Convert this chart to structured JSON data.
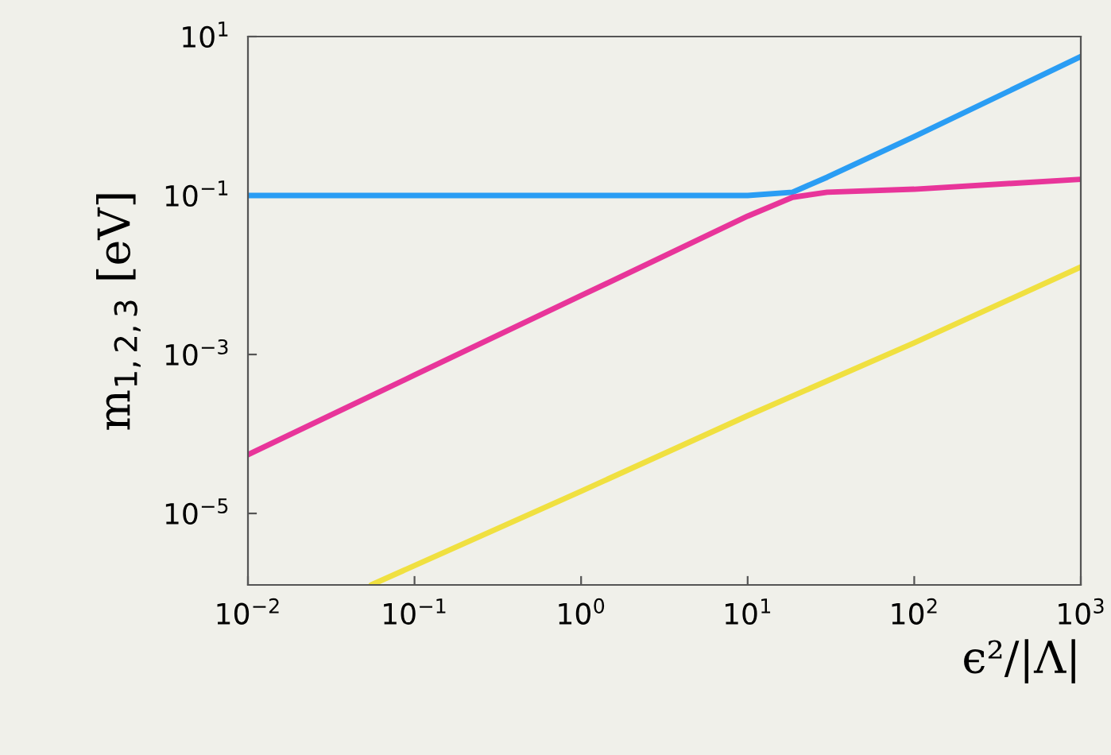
{
  "chart_data": {
    "type": "line",
    "xlabel": "ϵ²/|Λ|",
    "ylabel": "m$_{1,2,3}$ [eV]",
    "log": "xy",
    "grid": false,
    "marker": "none",
    "line_style": "solid",
    "xlim": [
      0.01,
      1000
    ],
    "ylim": [
      1.26e-06,
      10
    ],
    "xticks": [
      {
        "value": 0.01,
        "label": "10$^{−2}$"
      },
      {
        "value": 0.1,
        "label": "10$^{−1}$"
      },
      {
        "value": 1,
        "label": "10$^{0}$"
      },
      {
        "value": 10,
        "label": "10$^{1}$"
      },
      {
        "value": 100,
        "label": "10$^{2}$"
      },
      {
        "value": 1000,
        "label": "10$^{3}$"
      }
    ],
    "yticks": [
      {
        "value": 1e-05,
        "label": "10$^{−5}$"
      },
      {
        "value": 0.001,
        "label": "10$^{−3}$"
      },
      {
        "value": 0.1,
        "label": "10$^{−1}$"
      },
      {
        "value": 10,
        "label": "10$^{1}$"
      }
    ],
    "series": [
      {
        "color": "#2a9df4",
        "x": [
          0.01,
          0.1,
          1,
          10,
          18.6,
          30,
          100,
          1000
        ],
        "values": [
          0.1,
          0.1,
          0.1,
          0.1,
          0.11,
          0.17,
          0.55,
          5.6
        ]
      },
      {
        "color": "#e8359a",
        "x": [
          0.01,
          0.1,
          1,
          10,
          18.6,
          30,
          100,
          1000
        ],
        "values": [
          5.5e-05,
          0.00055,
          0.0055,
          0.055,
          0.095,
          0.11,
          0.12,
          0.16
        ]
      },
      {
        "color": "#f0e040",
        "x": [
          0.055,
          1,
          10,
          100,
          1000
        ],
        "values": [
          1.26e-06,
          1.9e-05,
          0.00017,
          0.0014,
          0.0126
        ]
      }
    ]
  }
}
